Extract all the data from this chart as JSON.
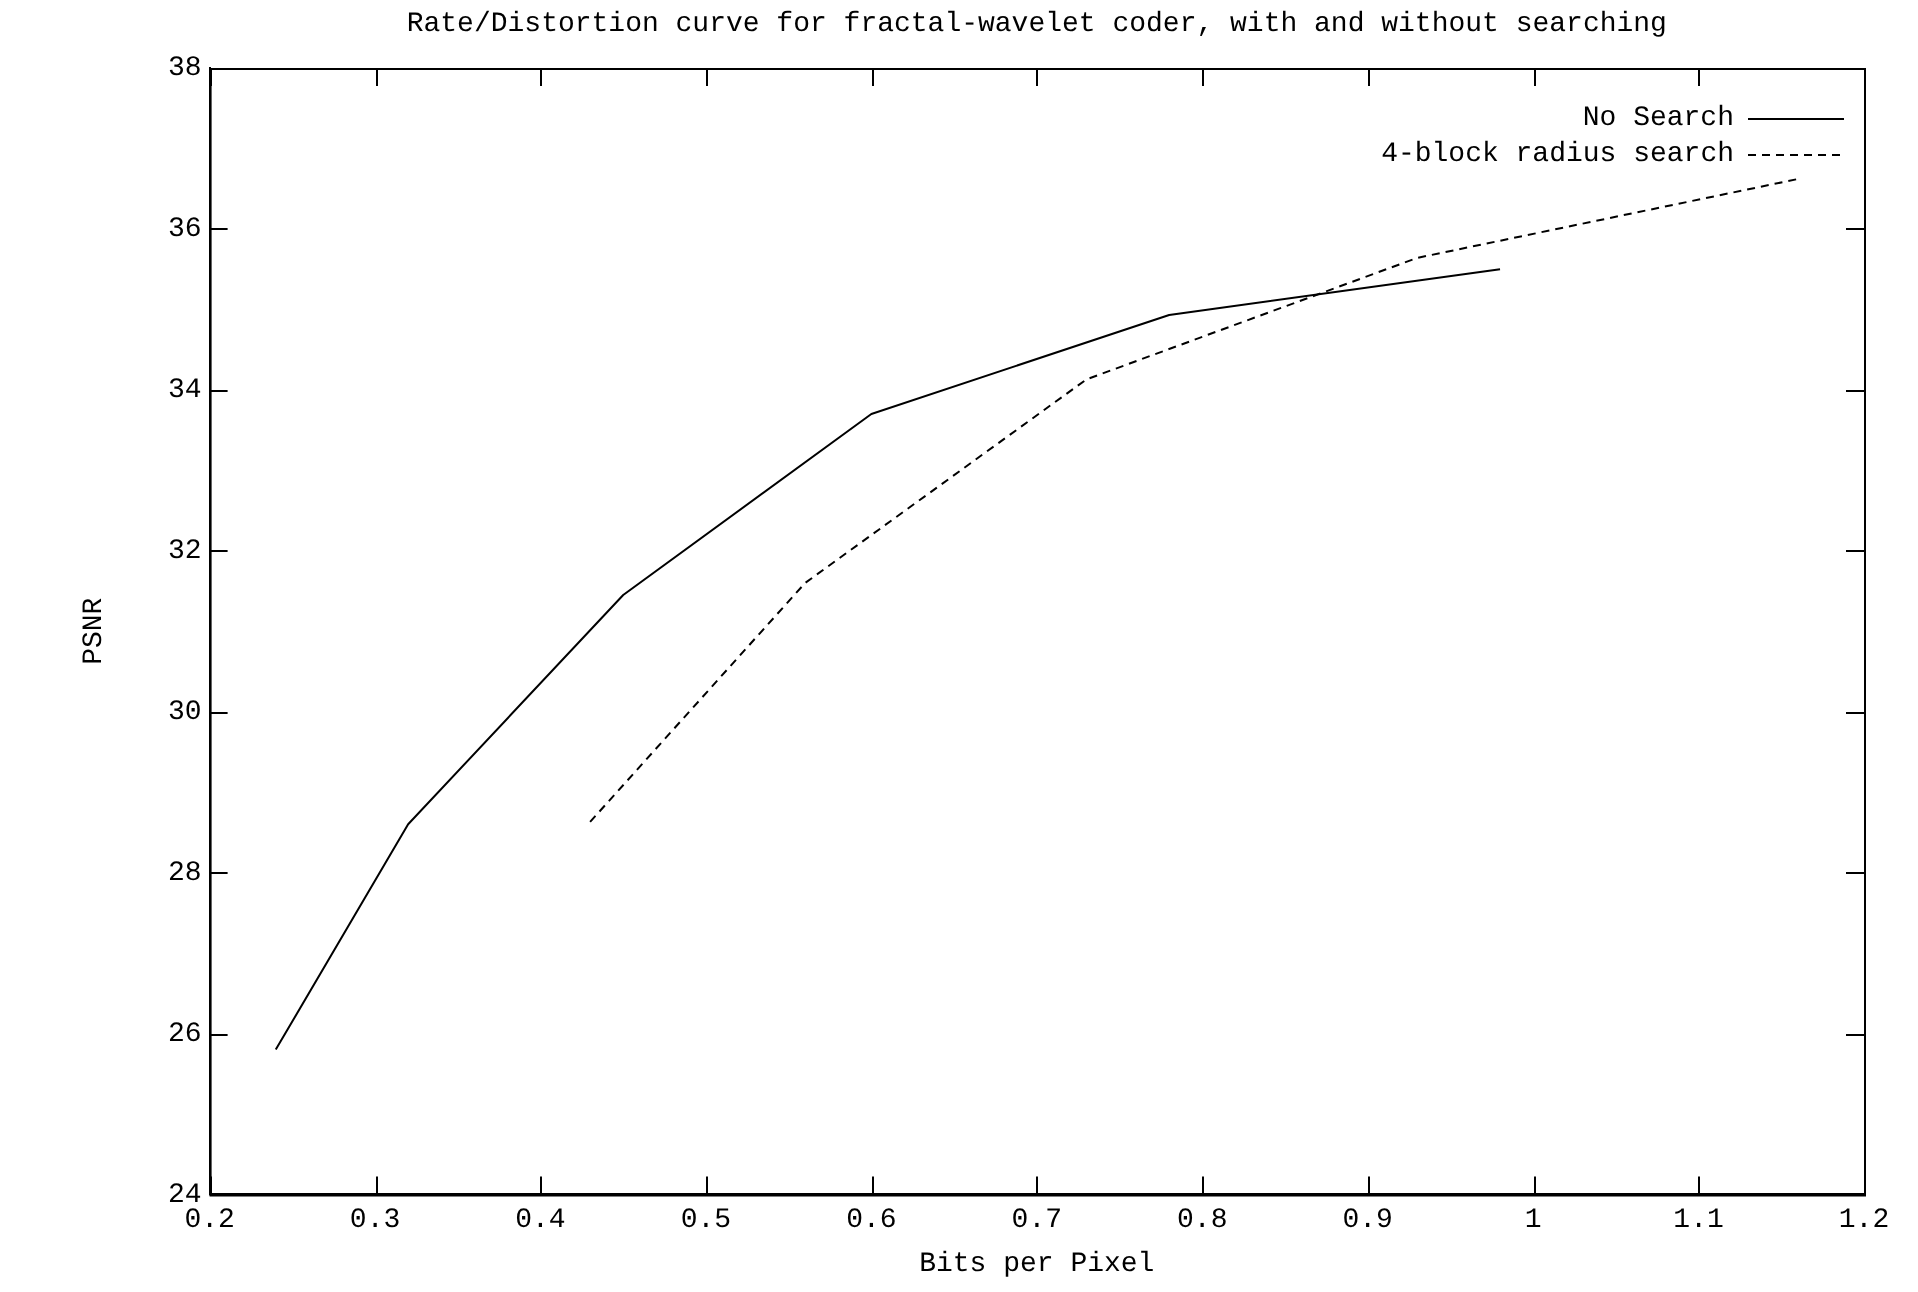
{
  "chart_data": {
    "type": "line",
    "title": "Rate/Distortion curve for fractal-wavelet coder, with and without searching",
    "xlabel": "Bits per Pixel",
    "ylabel": "PSNR",
    "xlim": [
      0.2,
      1.2
    ],
    "xticks": [
      0.2,
      0.3,
      0.4,
      0.5,
      0.6,
      0.7,
      0.8,
      0.9,
      1,
      1.1,
      1.2
    ],
    "ylim": [
      24,
      38
    ],
    "yticks": [
      24,
      26,
      28,
      30,
      32,
      34,
      36,
      38
    ],
    "grid": false,
    "legend": "top right",
    "marker": "none",
    "series": [
      {
        "name": "No Search",
        "color": "#000000",
        "line_style": "solid",
        "x": [
          0.24,
          0.32,
          0.45,
          0.6,
          0.78,
          0.98
        ],
        "values": [
          25.8,
          28.6,
          31.45,
          33.7,
          34.93,
          35.5
        ]
      },
      {
        "name": "4-block radius search",
        "color": "#000000",
        "line_style": "dashed",
        "x": [
          0.43,
          0.56,
          0.73,
          0.93,
          1.16
        ],
        "values": [
          28.63,
          31.6,
          34.13,
          35.64,
          36.62
        ]
      }
    ]
  }
}
